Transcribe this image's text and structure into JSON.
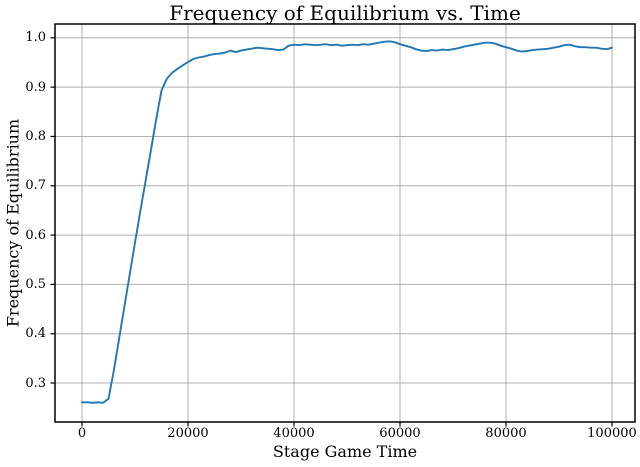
{
  "chart_data": {
    "type": "line",
    "title": "Frequency of Equilibrium vs. Time",
    "xlabel": "Stage Game Time",
    "ylabel": "Frequency of Equilibrium",
    "grid": true,
    "legend": false,
    "xlim": [
      -5094,
      104340
    ],
    "ylim": [
      0.221,
      1.028
    ],
    "xticks": [
      0,
      20000,
      40000,
      60000,
      80000,
      100000
    ],
    "xtick_labels": [
      "0",
      "20000",
      "40000",
      "60000",
      "80000",
      "100000"
    ],
    "yticks": [
      0.3,
      0.4,
      0.5,
      0.6,
      0.7,
      0.8,
      0.9,
      1.0
    ],
    "ytick_labels": [
      "0.3",
      "0.4",
      "0.5",
      "0.6",
      "0.7",
      "0.8",
      "0.9",
      "1.0"
    ],
    "colors": {
      "line": "#1f77b4",
      "grid": "#b0b0b0",
      "spine": "#000000",
      "text": "#000000",
      "background": "#ffffff"
    },
    "series": [
      {
        "name": "frequency-of-equilibrium",
        "x": [
          0,
          1000,
          2000,
          3000,
          4000,
          5000,
          6000,
          7000,
          8000,
          9000,
          10000,
          11000,
          12000,
          13000,
          14000,
          15000,
          16000,
          17000,
          18000,
          19000,
          20000,
          21000,
          22000,
          23000,
          24000,
          25000,
          26000,
          27000,
          28000,
          29000,
          30000,
          31000,
          32000,
          33000,
          34000,
          35000,
          36000,
          37000,
          38000,
          39000,
          40000,
          41000,
          42000,
          43000,
          44000,
          45000,
          46000,
          47000,
          48000,
          49000,
          50000,
          51000,
          52000,
          53000,
          54000,
          55000,
          56000,
          57000,
          58000,
          59000,
          60000,
          61000,
          62000,
          63000,
          64000,
          65000,
          66000,
          67000,
          68000,
          69000,
          70000,
          71000,
          72000,
          73000,
          74000,
          75000,
          76000,
          77000,
          78000,
          79000,
          80000,
          81000,
          82000,
          83000,
          84000,
          85000,
          86000,
          87000,
          88000,
          89000,
          90000,
          91000,
          92000,
          93000,
          94000,
          95000,
          96000,
          97000,
          98000,
          99000,
          100000
        ],
        "y": [
          0.261,
          0.261,
          0.26,
          0.261,
          0.26,
          0.268,
          0.325,
          0.39,
          0.455,
          0.52,
          0.585,
          0.648,
          0.71,
          0.772,
          0.835,
          0.893,
          0.917,
          0.929,
          0.937,
          0.944,
          0.951,
          0.957,
          0.96,
          0.962,
          0.965,
          0.967,
          0.968,
          0.97,
          0.974,
          0.971,
          0.974,
          0.976,
          0.978,
          0.98,
          0.979,
          0.978,
          0.977,
          0.975,
          0.976,
          0.984,
          0.986,
          0.985,
          0.987,
          0.986,
          0.985,
          0.986,
          0.987,
          0.985,
          0.986,
          0.984,
          0.985,
          0.986,
          0.985,
          0.987,
          0.986,
          0.988,
          0.99,
          0.992,
          0.993,
          0.991,
          0.987,
          0.984,
          0.981,
          0.977,
          0.974,
          0.973,
          0.975,
          0.974,
          0.976,
          0.975,
          0.977,
          0.979,
          0.982,
          0.984,
          0.986,
          0.988,
          0.99,
          0.99,
          0.988,
          0.984,
          0.981,
          0.978,
          0.974,
          0.972,
          0.973,
          0.975,
          0.976,
          0.977,
          0.978,
          0.98,
          0.982,
          0.985,
          0.986,
          0.983,
          0.981,
          0.981,
          0.98,
          0.98,
          0.978,
          0.977,
          0.98
        ]
      }
    ]
  }
}
